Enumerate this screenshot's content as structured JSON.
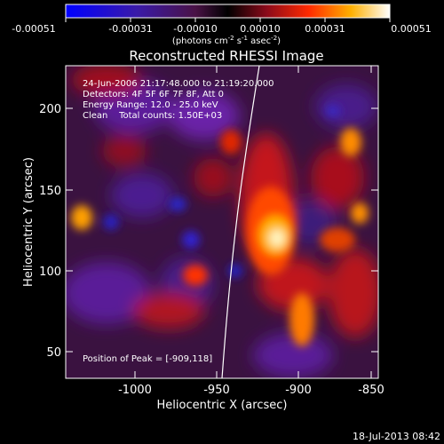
{
  "colorbar": {
    "ticks": [
      "-0.00051",
      "-0.00031",
      "-0.00010",
      "0.00010",
      "0.00031",
      "0.00051"
    ],
    "unit_prefix": "(photons cm",
    "unit_exp1": "-2",
    "unit_mid1": " s",
    "unit_exp2": "-1",
    "unit_mid2": " asec",
    "unit_exp3": "-2",
    "unit_suffix": ")"
  },
  "title": "Reconstructed RHESSI Image",
  "info_lines": [
    "24-Jun-2006 21:17:48.000 to 21:19:20.000",
    "Detectors: 4F 5F 6F 7F 8F, Att 0",
    "Energy Range: 12.0 - 25.0 keV",
    "Clean    Total counts: 1.50E+03"
  ],
  "peak_text": "Position of Peak = [-909,118]",
  "x_axis": {
    "label": "Heliocentric X (arcsec)",
    "ticks": [
      "-1000",
      "-950",
      "-900",
      "-850"
    ]
  },
  "y_axis": {
    "label": "Heliocentric Y (arcsec)",
    "ticks": [
      "50",
      "100",
      "150",
      "200"
    ]
  },
  "timestamp": "18-Jul-2013 08:42"
}
